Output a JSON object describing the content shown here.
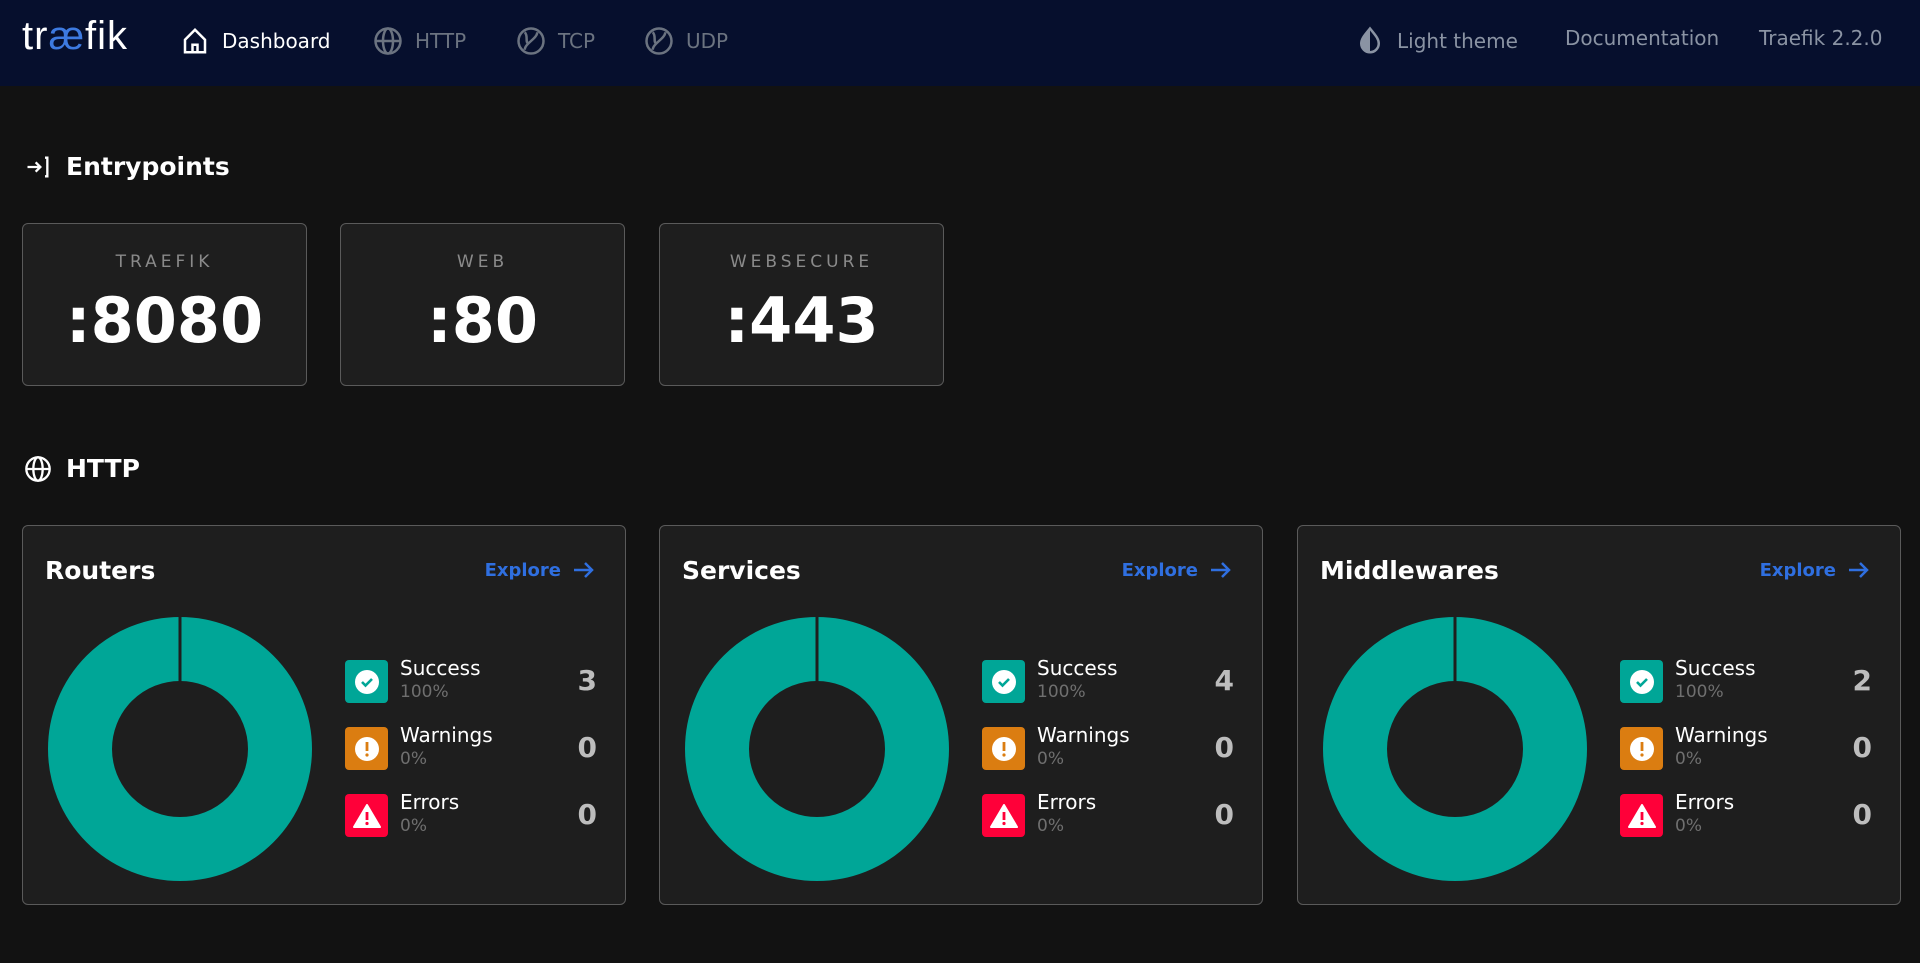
{
  "nav": {
    "logo": "traefik",
    "items": [
      {
        "label": "Dashboard",
        "icon": "home-icon"
      },
      {
        "label": "HTTP",
        "icon": "globe-icon"
      },
      {
        "label": "TCP",
        "icon": "tcp-icon"
      },
      {
        "label": "UDP",
        "icon": "udp-icon"
      }
    ],
    "theme": "Light theme",
    "docs": "Documentation",
    "version": "Traefik 2.2.0"
  },
  "entrypoints": {
    "title": "Entrypoints",
    "items": [
      {
        "name": "TRAEFIK",
        "port": ":8080"
      },
      {
        "name": "WEB",
        "port": ":80"
      },
      {
        "name": "WEBSECURE",
        "port": ":443"
      }
    ]
  },
  "http": {
    "title": "HTTP",
    "explore": "Explore",
    "panels": [
      {
        "title": "Routers",
        "success": {
          "label": "Success",
          "pct": "100%",
          "count": "3"
        },
        "warnings": {
          "label": "Warnings",
          "pct": "0%",
          "count": "0"
        },
        "errors": {
          "label": "Errors",
          "pct": "0%",
          "count": "0"
        }
      },
      {
        "title": "Services",
        "success": {
          "label": "Success",
          "pct": "100%",
          "count": "4"
        },
        "warnings": {
          "label": "Warnings",
          "pct": "0%",
          "count": "0"
        },
        "errors": {
          "label": "Errors",
          "pct": "0%",
          "count": "0"
        }
      },
      {
        "title": "Middlewares",
        "success": {
          "label": "Success",
          "pct": "100%",
          "count": "2"
        },
        "warnings": {
          "label": "Warnings",
          "pct": "0%",
          "count": "0"
        },
        "errors": {
          "label": "Errors",
          "pct": "0%",
          "count": "0"
        }
      }
    ]
  },
  "colors": {
    "success": "#00a697",
    "warning": "#db7d11",
    "error": "#ff0039",
    "accent": "#2f6fe0"
  }
}
